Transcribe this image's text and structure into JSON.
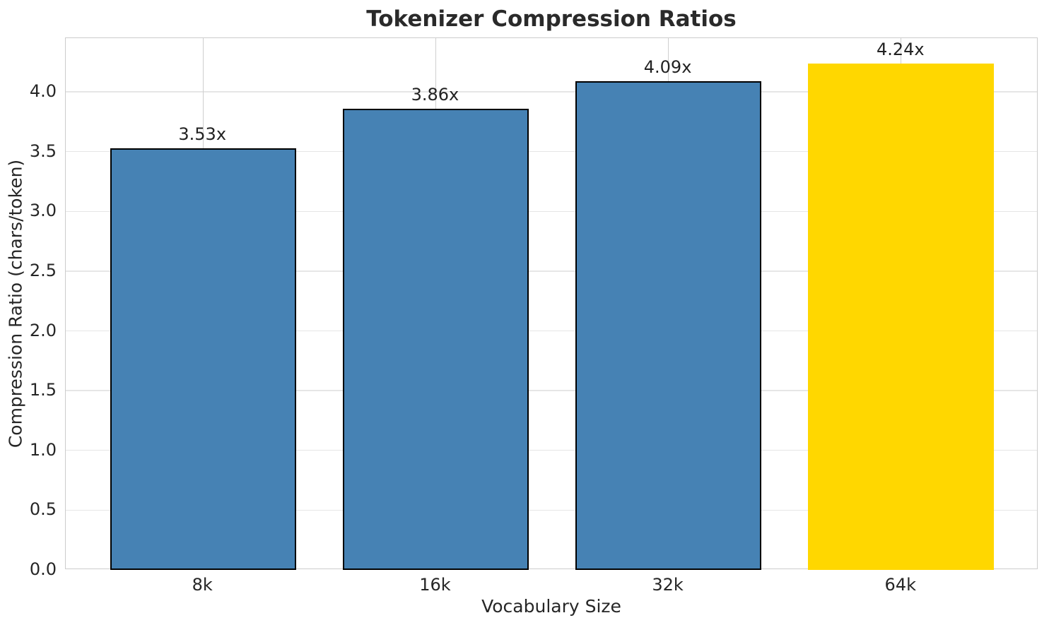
{
  "chart_data": {
    "type": "bar",
    "title": "Tokenizer Compression Ratios",
    "xlabel": "Vocabulary Size",
    "ylabel": "Compression Ratio (chars/token)",
    "categories": [
      "8k",
      "16k",
      "32k",
      "64k"
    ],
    "values": [
      3.53,
      3.86,
      4.09,
      4.24
    ],
    "bar_labels": [
      "3.53x",
      "3.86x",
      "4.09x",
      "4.24x"
    ],
    "bar_colors": [
      "#4682B4",
      "#4682B4",
      "#4682B4",
      "#FFD700"
    ],
    "bar_edge_colors": [
      "#000000",
      "#000000",
      "#000000",
      "none"
    ],
    "ytick_labels": [
      "0.0",
      "0.5",
      "1.0",
      "1.5",
      "2.0",
      "2.5",
      "3.0",
      "3.5",
      "4.0"
    ],
    "yticks": [
      0.0,
      0.5,
      1.0,
      1.5,
      2.0,
      2.5,
      3.0,
      3.5,
      4.0
    ],
    "ylim": [
      0,
      4.45
    ],
    "grid": true,
    "legend": false,
    "highlight_category": "64k",
    "colors": {
      "default_bar": "#4682B4",
      "highlight_bar": "#FFD700",
      "bar_edge": "#000000",
      "grid_vertical": "#cfcfcf",
      "grid_horizontal": "#e6e6e6",
      "spine": "#cccccc"
    }
  }
}
